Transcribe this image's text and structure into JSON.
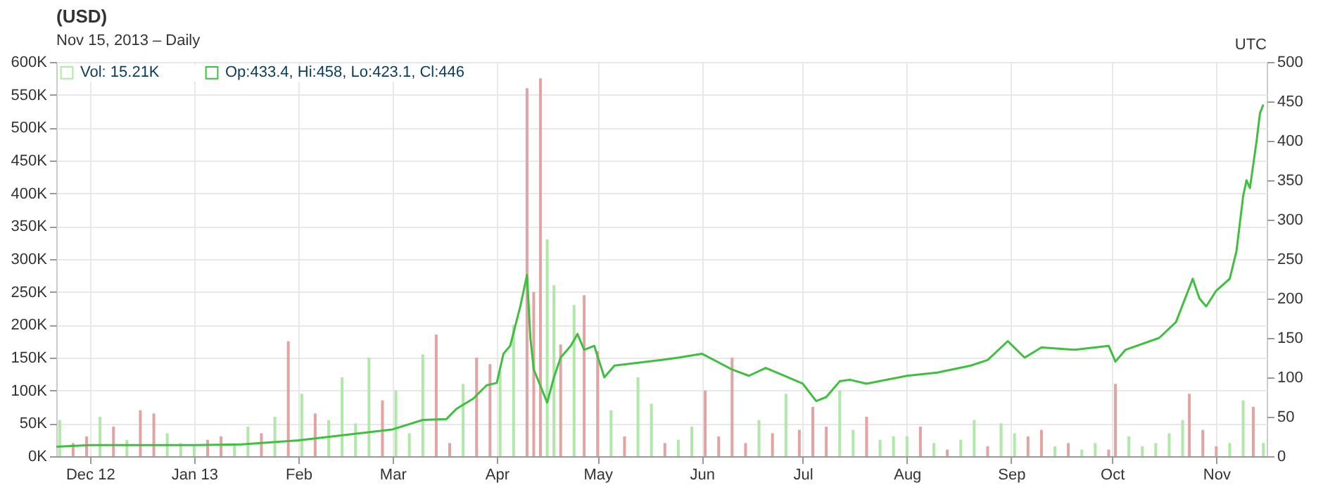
{
  "chart_data": {
    "type": "line",
    "title": "(USD)",
    "subtitle": "Nov 15, 2013 – Daily",
    "annotations": [
      "UTC"
    ],
    "xlim": [
      "2012-11-21",
      "2013-11-16"
    ],
    "xticks": [
      {
        "value": "2012-12-01",
        "label": "Dec 12"
      },
      {
        "value": "2013-01-01",
        "label": "Jan 13"
      },
      {
        "value": "2013-02-01",
        "label": "Feb"
      },
      {
        "value": "2013-03-01",
        "label": "Mar"
      },
      {
        "value": "2013-04-01",
        "label": "Apr"
      },
      {
        "value": "2013-05-01",
        "label": "May"
      },
      {
        "value": "2013-06-01",
        "label": "Jun"
      },
      {
        "value": "2013-07-01",
        "label": "Jul"
      },
      {
        "value": "2013-08-01",
        "label": "Aug"
      },
      {
        "value": "2013-09-01",
        "label": "Sep"
      },
      {
        "value": "2013-10-01",
        "label": "Oct"
      },
      {
        "value": "2013-11-01",
        "label": "Nov"
      }
    ],
    "ylim": [
      0,
      600000
    ],
    "yticks": [
      {
        "value": 0,
        "label": "0K"
      },
      {
        "value": 50000,
        "label": "50K"
      },
      {
        "value": 100000,
        "label": "100K"
      },
      {
        "value": 150000,
        "label": "150K"
      },
      {
        "value": 200000,
        "label": "200K"
      },
      {
        "value": 250000,
        "label": "250K"
      },
      {
        "value": 300000,
        "label": "300K"
      },
      {
        "value": 350000,
        "label": "350K"
      },
      {
        "value": 400000,
        "label": "400K"
      },
      {
        "value": 450000,
        "label": "450K"
      },
      {
        "value": 500000,
        "label": "500K"
      },
      {
        "value": 550000,
        "label": "550K"
      },
      {
        "value": 600000,
        "label": "600K"
      }
    ],
    "y2lim": [
      0,
      500
    ],
    "y2ticks": [
      0,
      50,
      100,
      150,
      200,
      250,
      300,
      350,
      400,
      450,
      500
    ],
    "grid": true,
    "legend": "top left",
    "series": [
      {
        "name": "Vol: 15.21K",
        "type": "bar",
        "color": "#b0e8a8",
        "x": [
          "2012-11-22",
          "2012-11-26",
          "2012-11-30",
          "2012-12-04",
          "2012-12-08",
          "2012-12-12",
          "2012-12-16",
          "2012-12-20",
          "2012-12-24",
          "2012-12-28",
          "2013-01-01",
          "2013-01-05",
          "2013-01-09",
          "2013-01-13",
          "2013-01-17",
          "2013-01-21",
          "2013-01-25",
          "2013-01-29",
          "2013-02-02",
          "2013-02-06",
          "2013-02-10",
          "2013-02-14",
          "2013-02-18",
          "2013-02-22",
          "2013-02-26",
          "2013-03-02",
          "2013-03-06",
          "2013-03-10",
          "2013-03-14",
          "2013-03-18",
          "2013-03-22",
          "2013-03-26",
          "2013-03-30",
          "2013-04-02",
          "2013-04-06",
          "2013-04-10",
          "2013-04-12",
          "2013-04-14",
          "2013-04-16",
          "2013-04-18",
          "2013-04-20",
          "2013-04-24",
          "2013-04-27",
          "2013-05-01",
          "2013-05-05",
          "2013-05-09",
          "2013-05-13",
          "2013-05-17",
          "2013-05-21",
          "2013-05-25",
          "2013-05-29",
          "2013-06-02",
          "2013-06-06",
          "2013-06-10",
          "2013-06-14",
          "2013-06-18",
          "2013-06-22",
          "2013-06-26",
          "2013-06-30",
          "2013-07-04",
          "2013-07-08",
          "2013-07-12",
          "2013-07-16",
          "2013-07-20",
          "2013-07-24",
          "2013-07-28",
          "2013-08-01",
          "2013-08-05",
          "2013-08-09",
          "2013-08-13",
          "2013-08-17",
          "2013-08-21",
          "2013-08-25",
          "2013-08-29",
          "2013-09-02",
          "2013-09-06",
          "2013-09-10",
          "2013-09-14",
          "2013-09-18",
          "2013-09-22",
          "2013-09-26",
          "2013-09-30",
          "2013-10-02",
          "2013-10-06",
          "2013-10-10",
          "2013-10-14",
          "2013-10-18",
          "2013-10-22",
          "2013-10-24",
          "2013-10-28",
          "2013-11-01",
          "2013-11-05",
          "2013-11-09",
          "2013-11-12",
          "2013-11-15"
        ],
        "values": [
          55000,
          20000,
          30000,
          60000,
          45000,
          25000,
          70000,
          65000,
          35000,
          20000,
          15000,
          25000,
          30000,
          20000,
          45000,
          35000,
          60000,
          175000,
          95000,
          65000,
          55000,
          120000,
          50000,
          150000,
          85000,
          100000,
          35000,
          155000,
          185000,
          20000,
          110000,
          150000,
          140000,
          130000,
          200000,
          560000,
          250000,
          575000,
          330000,
          260000,
          170000,
          230000,
          245000,
          160000,
          70000,
          30000,
          120000,
          80000,
          20000,
          25000,
          45000,
          100000,
          30000,
          150000,
          20000,
          55000,
          35000,
          95000,
          40000,
          75000,
          45000,
          100000,
          40000,
          60000,
          25000,
          30000,
          30000,
          45000,
          20000,
          10000,
          25000,
          55000,
          15000,
          50000,
          35000,
          30000,
          40000,
          15000,
          20000,
          10000,
          20000,
          10000,
          110000,
          30000,
          15000,
          20000,
          35000,
          55000,
          95000,
          40000,
          15000,
          20000,
          85000,
          75000,
          20000
        ],
        "colors": [
          "#b0e8a8",
          "#e3a3a3",
          "#e3a3a3",
          "#b0e8a8",
          "#e3a3a3",
          "#b0e8a8",
          "#e3a3a3",
          "#e3a3a3",
          "#b0e8a8",
          "#b0e8a8",
          "#b0e8a8",
          "#e3a3a3",
          "#e3a3a3",
          "#b0e8a8",
          "#b0e8a8",
          "#e3a3a3",
          "#b0e8a8",
          "#e3a3a3",
          "#b0e8a8",
          "#e3a3a3",
          "#b0e8a8",
          "#b0e8a8",
          "#b0e8a8",
          "#b0e8a8",
          "#e3a3a3",
          "#b0e8a8",
          "#b0e8a8",
          "#b0e8a8",
          "#e3a3a3",
          "#e3a3a3",
          "#b0e8a8",
          "#e3a3a3",
          "#e3a3a3",
          "#b0e8a8",
          "#b0e8a8",
          "#e3a3a3",
          "#e3a3a3",
          "#e3a3a3",
          "#b0e8a8",
          "#b0e8a8",
          "#e3a3a3",
          "#b0e8a8",
          "#e3a3a3",
          "#e3a3a3",
          "#b0e8a8",
          "#e3a3a3",
          "#b0e8a8",
          "#b0e8a8",
          "#e3a3a3",
          "#b0e8a8",
          "#b0e8a8",
          "#e3a3a3",
          "#e3a3a3",
          "#e3a3a3",
          "#e3a3a3",
          "#b0e8a8",
          "#e3a3a3",
          "#b0e8a8",
          "#e3a3a3",
          "#e3a3a3",
          "#e3a3a3",
          "#b0e8a8",
          "#b0e8a8",
          "#e3a3a3",
          "#b0e8a8",
          "#b0e8a8",
          "#b0e8a8",
          "#e3a3a3",
          "#b0e8a8",
          "#e3a3a3",
          "#b0e8a8",
          "#b0e8a8",
          "#e3a3a3",
          "#b0e8a8",
          "#b0e8a8",
          "#e3a3a3",
          "#e3a3a3",
          "#b0e8a8",
          "#e3a3a3",
          "#b0e8a8",
          "#b0e8a8",
          "#e3a3a3",
          "#e3a3a3",
          "#b0e8a8",
          "#b0e8a8",
          "#b0e8a8",
          "#b0e8a8",
          "#b0e8a8",
          "#e3a3a3",
          "#e3a3a3",
          "#e3a3a3",
          "#b0e8a8",
          "#b0e8a8",
          "#e3a3a3",
          "#b0e8a8"
        ]
      },
      {
        "name": "Op:433.4, Hi:458, Lo:423.1, Cl:446",
        "axis": "y2",
        "color": "#3fbf3f",
        "x": [
          "2012-11-21",
          "2012-12-01",
          "2012-12-15",
          "2013-01-01",
          "2013-01-15",
          "2013-02-01",
          "2013-02-15",
          "2013-03-01",
          "2013-03-10",
          "2013-03-17",
          "2013-03-20",
          "2013-03-25",
          "2013-03-29",
          "2013-04-01",
          "2013-04-03",
          "2013-04-05",
          "2013-04-08",
          "2013-04-10",
          "2013-04-11",
          "2013-04-12",
          "2013-04-16",
          "2013-04-18",
          "2013-04-20",
          "2013-04-23",
          "2013-04-25",
          "2013-04-27",
          "2013-04-30",
          "2013-05-03",
          "2013-05-06",
          "2013-05-10",
          "2013-05-20",
          "2013-05-25",
          "2013-06-01",
          "2013-06-10",
          "2013-06-15",
          "2013-06-20",
          "2013-06-25",
          "2013-07-01",
          "2013-07-05",
          "2013-07-08",
          "2013-07-12",
          "2013-07-15",
          "2013-07-20",
          "2013-08-01",
          "2013-08-10",
          "2013-08-20",
          "2013-08-25",
          "2013-08-31",
          "2013-09-05",
          "2013-09-10",
          "2013-09-20",
          "2013-09-30",
          "2013-10-02",
          "2013-10-05",
          "2013-10-15",
          "2013-10-20",
          "2013-10-25",
          "2013-10-27",
          "2013-10-29",
          "2013-11-01",
          "2013-11-05",
          "2013-11-07",
          "2013-11-09",
          "2013-11-10",
          "2013-11-11",
          "2013-11-12",
          "2013-11-13",
          "2013-11-14",
          "2013-11-15"
        ],
        "values": [
          12,
          14,
          14,
          14,
          15,
          20,
          27,
          34,
          46,
          47,
          60,
          73,
          90,
          93,
          130,
          140,
          190,
          230,
          150,
          110,
          68,
          100,
          125,
          140,
          155,
          135,
          140,
          100,
          115,
          117,
          122,
          125,
          130,
          110,
          102,
          112,
          103,
          92,
          70,
          75,
          95,
          97,
          92,
          102,
          106,
          115,
          122,
          146,
          125,
          138,
          135,
          140,
          120,
          135,
          150,
          170,
          225,
          200,
          190,
          210,
          225,
          260,
          330,
          350,
          340,
          370,
          400,
          435,
          446
        ]
      }
    ]
  }
}
